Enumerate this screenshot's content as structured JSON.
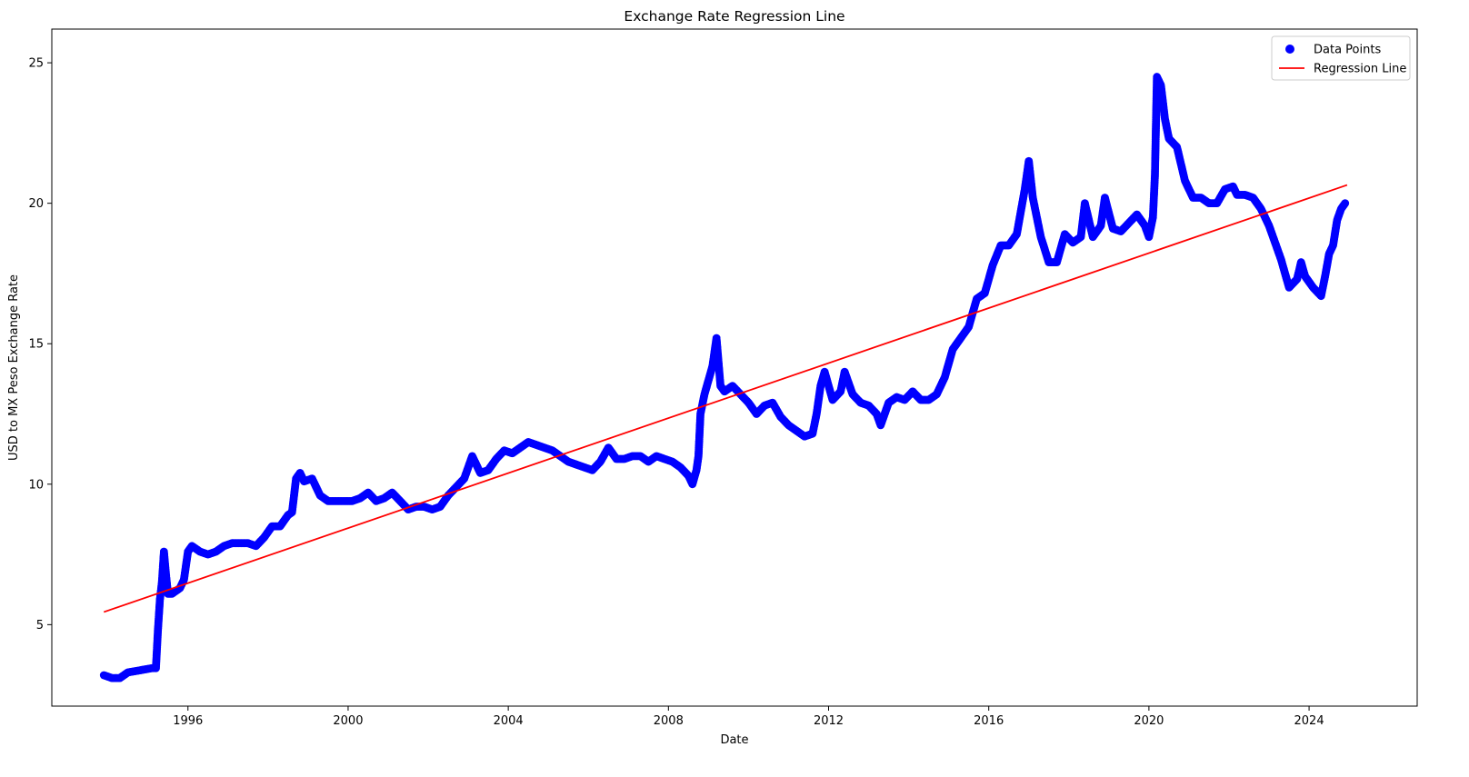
{
  "chart_data": {
    "type": "scatter",
    "title": "Exchange Rate Regression Line",
    "xlabel": "Date",
    "ylabel": "USD to MX Peso Exchange Rate",
    "xlim": [
      1992.6,
      2026.7
    ],
    "ylim": [
      2.1,
      26.2
    ],
    "x_ticks": [
      1996,
      2000,
      2004,
      2008,
      2012,
      2016,
      2020,
      2024
    ],
    "x_tick_labels": [
      "1996",
      "2000",
      "2004",
      "2008",
      "2012",
      "2016",
      "2020",
      "2024"
    ],
    "y_ticks": [
      5,
      10,
      15,
      20,
      25
    ],
    "y_tick_labels": [
      "5",
      "10",
      "15",
      "20",
      "25"
    ],
    "grid": false,
    "legend": {
      "position": "top-right",
      "entries": [
        {
          "label": "Data Points",
          "color": "#0000ff",
          "marker": "circle"
        },
        {
          "label": "Regression Line",
          "color": "#ff0000",
          "marker": "line"
        }
      ]
    },
    "series": [
      {
        "name": "Data Points",
        "kind": "scatter",
        "color": "#0000ff",
        "points": [
          [
            1993.9,
            3.2
          ],
          [
            1994.1,
            3.1
          ],
          [
            1994.3,
            3.1
          ],
          [
            1994.5,
            3.3
          ],
          [
            1994.7,
            3.35
          ],
          [
            1994.9,
            3.4
          ],
          [
            1995.1,
            3.45
          ],
          [
            1995.2,
            3.45
          ],
          [
            1995.25,
            4.8
          ],
          [
            1995.3,
            5.9
          ],
          [
            1995.35,
            6.5
          ],
          [
            1995.4,
            7.6
          ],
          [
            1995.45,
            6.8
          ],
          [
            1995.5,
            6.1
          ],
          [
            1995.6,
            6.1
          ],
          [
            1995.7,
            6.2
          ],
          [
            1995.8,
            6.3
          ],
          [
            1995.9,
            6.6
          ],
          [
            1996.0,
            7.6
          ],
          [
            1996.1,
            7.8
          ],
          [
            1996.3,
            7.6
          ],
          [
            1996.5,
            7.5
          ],
          [
            1996.7,
            7.6
          ],
          [
            1996.9,
            7.8
          ],
          [
            1997.1,
            7.9
          ],
          [
            1997.3,
            7.9
          ],
          [
            1997.5,
            7.9
          ],
          [
            1997.7,
            7.8
          ],
          [
            1997.9,
            8.1
          ],
          [
            1998.1,
            8.5
          ],
          [
            1998.3,
            8.5
          ],
          [
            1998.5,
            8.9
          ],
          [
            1998.6,
            9.0
          ],
          [
            1998.7,
            10.2
          ],
          [
            1998.8,
            10.4
          ],
          [
            1998.9,
            10.1
          ],
          [
            1999.1,
            10.2
          ],
          [
            1999.3,
            9.6
          ],
          [
            1999.5,
            9.4
          ],
          [
            1999.7,
            9.4
          ],
          [
            1999.9,
            9.4
          ],
          [
            2000.1,
            9.4
          ],
          [
            2000.3,
            9.5
          ],
          [
            2000.5,
            9.7
          ],
          [
            2000.7,
            9.4
          ],
          [
            2000.9,
            9.5
          ],
          [
            2001.1,
            9.7
          ],
          [
            2001.3,
            9.4
          ],
          [
            2001.5,
            9.1
          ],
          [
            2001.7,
            9.2
          ],
          [
            2001.9,
            9.2
          ],
          [
            2002.1,
            9.1
          ],
          [
            2002.3,
            9.2
          ],
          [
            2002.5,
            9.6
          ],
          [
            2002.7,
            9.9
          ],
          [
            2002.9,
            10.2
          ],
          [
            2003.1,
            11.0
          ],
          [
            2003.3,
            10.4
          ],
          [
            2003.5,
            10.5
          ],
          [
            2003.7,
            10.9
          ],
          [
            2003.9,
            11.2
          ],
          [
            2004.1,
            11.1
          ],
          [
            2004.3,
            11.3
          ],
          [
            2004.5,
            11.5
          ],
          [
            2004.7,
            11.4
          ],
          [
            2004.9,
            11.3
          ],
          [
            2005.1,
            11.2
          ],
          [
            2005.3,
            11.0
          ],
          [
            2005.5,
            10.8
          ],
          [
            2005.7,
            10.7
          ],
          [
            2005.9,
            10.6
          ],
          [
            2006.1,
            10.5
          ],
          [
            2006.3,
            10.8
          ],
          [
            2006.5,
            11.3
          ],
          [
            2006.7,
            10.9
          ],
          [
            2006.9,
            10.9
          ],
          [
            2007.1,
            11.0
          ],
          [
            2007.3,
            11.0
          ],
          [
            2007.5,
            10.8
          ],
          [
            2007.7,
            11.0
          ],
          [
            2007.9,
            10.9
          ],
          [
            2008.1,
            10.8
          ],
          [
            2008.3,
            10.6
          ],
          [
            2008.5,
            10.3
          ],
          [
            2008.6,
            10.0
          ],
          [
            2008.7,
            10.5
          ],
          [
            2008.75,
            11.0
          ],
          [
            2008.8,
            12.5
          ],
          [
            2008.9,
            13.2
          ],
          [
            2009.0,
            13.7
          ],
          [
            2009.1,
            14.2
          ],
          [
            2009.2,
            15.2
          ],
          [
            2009.3,
            13.5
          ],
          [
            2009.4,
            13.3
          ],
          [
            2009.6,
            13.5
          ],
          [
            2009.8,
            13.2
          ],
          [
            2010.0,
            12.9
          ],
          [
            2010.2,
            12.5
          ],
          [
            2010.4,
            12.8
          ],
          [
            2010.6,
            12.9
          ],
          [
            2010.8,
            12.4
          ],
          [
            2011.0,
            12.1
          ],
          [
            2011.2,
            11.9
          ],
          [
            2011.4,
            11.7
          ],
          [
            2011.6,
            11.8
          ],
          [
            2011.7,
            12.5
          ],
          [
            2011.8,
            13.5
          ],
          [
            2011.9,
            14.0
          ],
          [
            2012.1,
            13.0
          ],
          [
            2012.3,
            13.3
          ],
          [
            2012.4,
            14.0
          ],
          [
            2012.6,
            13.2
          ],
          [
            2012.8,
            12.9
          ],
          [
            2013.0,
            12.8
          ],
          [
            2013.2,
            12.5
          ],
          [
            2013.3,
            12.1
          ],
          [
            2013.5,
            12.9
          ],
          [
            2013.7,
            13.1
          ],
          [
            2013.9,
            13.0
          ],
          [
            2014.1,
            13.3
          ],
          [
            2014.3,
            13.0
          ],
          [
            2014.5,
            13.0
          ],
          [
            2014.7,
            13.2
          ],
          [
            2014.9,
            13.8
          ],
          [
            2015.1,
            14.8
          ],
          [
            2015.3,
            15.2
          ],
          [
            2015.5,
            15.6
          ],
          [
            2015.7,
            16.6
          ],
          [
            2015.9,
            16.8
          ],
          [
            2016.1,
            17.8
          ],
          [
            2016.3,
            18.5
          ],
          [
            2016.5,
            18.5
          ],
          [
            2016.7,
            18.9
          ],
          [
            2016.9,
            20.5
          ],
          [
            2017.0,
            21.5
          ],
          [
            2017.1,
            20.2
          ],
          [
            2017.3,
            18.8
          ],
          [
            2017.5,
            17.9
          ],
          [
            2017.7,
            17.9
          ],
          [
            2017.9,
            18.9
          ],
          [
            2018.1,
            18.6
          ],
          [
            2018.3,
            18.8
          ],
          [
            2018.4,
            20.0
          ],
          [
            2018.6,
            18.8
          ],
          [
            2018.8,
            19.2
          ],
          [
            2018.9,
            20.2
          ],
          [
            2019.1,
            19.1
          ],
          [
            2019.3,
            19.0
          ],
          [
            2019.5,
            19.3
          ],
          [
            2019.7,
            19.6
          ],
          [
            2019.9,
            19.2
          ],
          [
            2020.0,
            18.8
          ],
          [
            2020.1,
            19.5
          ],
          [
            2020.15,
            21.0
          ],
          [
            2020.2,
            24.5
          ],
          [
            2020.3,
            24.2
          ],
          [
            2020.4,
            23.0
          ],
          [
            2020.5,
            22.3
          ],
          [
            2020.7,
            22.0
          ],
          [
            2020.9,
            20.8
          ],
          [
            2021.1,
            20.2
          ],
          [
            2021.3,
            20.2
          ],
          [
            2021.5,
            20.0
          ],
          [
            2021.7,
            20.0
          ],
          [
            2021.9,
            20.5
          ],
          [
            2022.1,
            20.6
          ],
          [
            2022.2,
            20.3
          ],
          [
            2022.4,
            20.3
          ],
          [
            2022.6,
            20.2
          ],
          [
            2022.8,
            19.8
          ],
          [
            2023.0,
            19.2
          ],
          [
            2023.1,
            18.8
          ],
          [
            2023.3,
            18.0
          ],
          [
            2023.5,
            17.0
          ],
          [
            2023.7,
            17.3
          ],
          [
            2023.8,
            17.9
          ],
          [
            2023.9,
            17.4
          ],
          [
            2024.1,
            17.0
          ],
          [
            2024.3,
            16.7
          ],
          [
            2024.4,
            17.4
          ],
          [
            2024.5,
            18.2
          ],
          [
            2024.6,
            18.5
          ],
          [
            2024.7,
            19.4
          ],
          [
            2024.8,
            19.8
          ],
          [
            2024.9,
            20.0
          ]
        ]
      },
      {
        "name": "Regression Line",
        "kind": "line",
        "color": "#ff0000",
        "points": [
          [
            1993.9,
            5.45
          ],
          [
            2024.95,
            20.65
          ]
        ]
      }
    ]
  }
}
